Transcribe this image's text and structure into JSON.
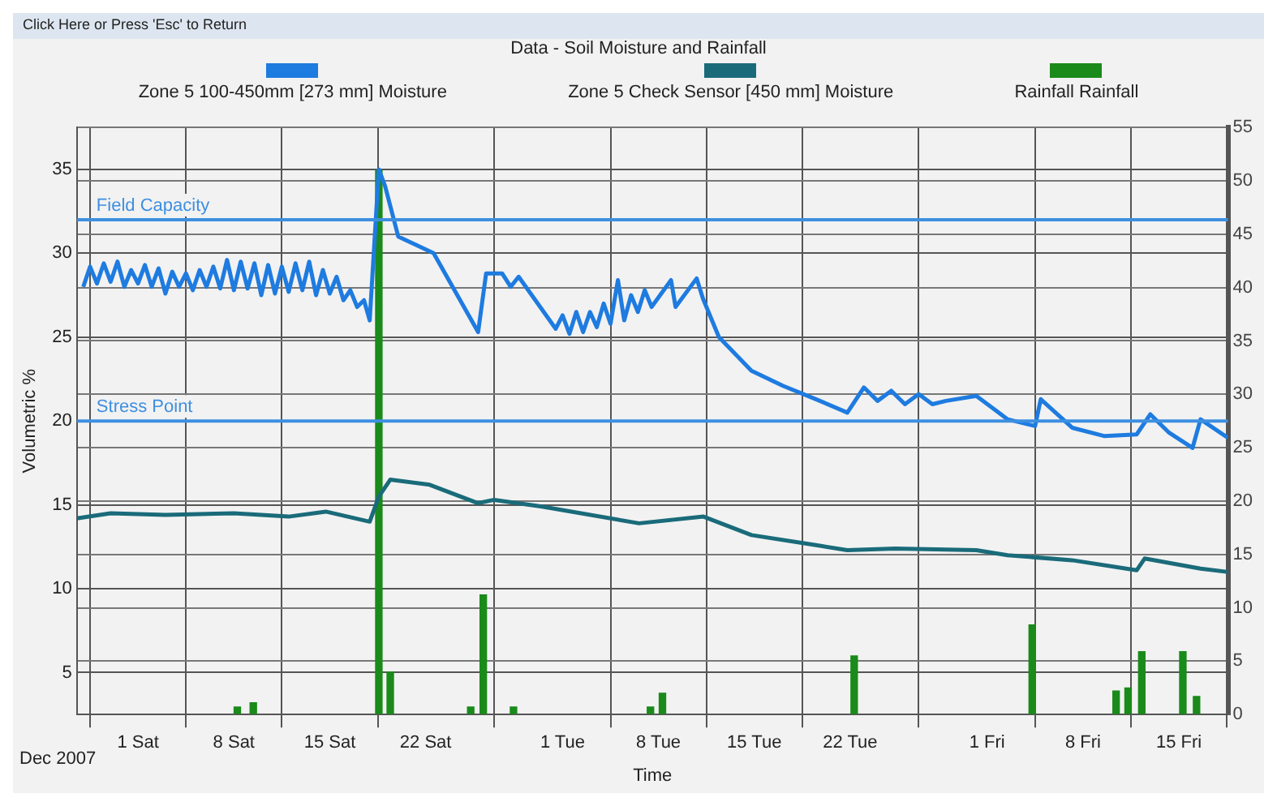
{
  "chart_data": {
    "type": "line",
    "title": "Data - Soil Moisture and Rainfall",
    "xlabel": "Time",
    "ylabel": "Volumetric %",
    "annotations": [
      "Click Here or Press 'Esc' to Return",
      "Dec 2007"
    ],
    "xlim": [
      "2007-11-26T13:00",
      "2008-02-18T14:00"
    ],
    "xticks": [
      {
        "value": "2007-12-01",
        "label": "1 Sat"
      },
      {
        "value": "2007-12-08",
        "label": "8 Sat"
      },
      {
        "value": "2007-12-15",
        "label": "15 Sat"
      },
      {
        "value": "2007-12-22",
        "label": "22 Sat"
      },
      {
        "value": "2008-01-01",
        "label": "1 Tue"
      },
      {
        "value": "2008-01-08",
        "label": "8 Tue"
      },
      {
        "value": "2008-01-15",
        "label": "15 Tue"
      },
      {
        "value": "2008-01-22",
        "label": "22 Tue"
      },
      {
        "value": "2008-02-01",
        "label": "1 Fri"
      },
      {
        "value": "2008-02-08",
        "label": "8 Fri"
      },
      {
        "value": "2008-02-15",
        "label": "15 Fri"
      }
    ],
    "ylim": [
      2.5,
      37.5
    ],
    "yticks": [
      5,
      10,
      15,
      20,
      25,
      30,
      35
    ],
    "y2lim": [
      0,
      55
    ],
    "y2ticks": [
      0,
      5,
      10,
      15,
      20,
      25,
      30,
      35,
      40,
      45,
      50,
      55
    ],
    "grid": true,
    "legend": "top",
    "ref_lines": [
      {
        "axis": "y",
        "value": 32,
        "label": "Field Capacity",
        "color": "#3d8fe0"
      },
      {
        "axis": "y",
        "value": 20,
        "label": "Stress Point",
        "color": "#3d8fe0"
      }
    ],
    "series": [
      {
        "name": "Zone 5  100-450mm  [273 mm] Moisture",
        "color": "#1e7be0",
        "x": [
          "2007-11-27T00:00",
          "2007-11-27T12:00",
          "2007-11-28T00:00",
          "2007-11-28T12:00",
          "2007-11-29T00:00",
          "2007-11-29T12:00",
          "2007-11-30T00:00",
          "2007-11-30T12:00",
          "2007-12-01T00:00",
          "2007-12-01T12:00",
          "2007-12-02T00:00",
          "2007-12-02T12:00",
          "2007-12-03T00:00",
          "2007-12-03T12:00",
          "2007-12-04T00:00",
          "2007-12-04T12:00",
          "2007-12-05T00:00",
          "2007-12-05T12:00",
          "2007-12-06T00:00",
          "2007-12-06T12:00",
          "2007-12-07T00:00",
          "2007-12-07T12:00",
          "2007-12-08T00:00",
          "2007-12-08T12:00",
          "2007-12-09T00:00",
          "2007-12-09T12:00",
          "2007-12-10T00:00",
          "2007-12-10T12:00",
          "2007-12-11T00:00",
          "2007-12-11T12:00",
          "2007-12-12T00:00",
          "2007-12-12T12:00",
          "2007-12-13T00:00",
          "2007-12-13T12:00",
          "2007-12-14T00:00",
          "2007-12-14T12:00",
          "2007-12-15T00:00",
          "2007-12-15T12:00",
          "2007-12-16T00:00",
          "2007-12-16T12:00",
          "2007-12-17T00:00",
          "2007-12-17T12:00",
          "2007-12-17T22:00",
          "2007-12-18T14:00",
          "2007-12-19T01:00",
          "2007-12-20T00:00",
          "2007-12-22T14:00",
          "2007-12-25T20:00",
          "2007-12-26T10:00",
          "2007-12-27T14:00",
          "2007-12-28T05:00",
          "2007-12-28T19:00",
          "2007-12-31T12:00",
          "2008-01-01T00:00",
          "2008-01-01T12:00",
          "2008-01-02T00:00",
          "2008-01-02T12:00",
          "2008-01-03T00:00",
          "2008-01-03T12:00",
          "2008-01-04T00:00",
          "2008-01-04T12:00",
          "2008-01-05T01:00",
          "2008-01-05T12:00",
          "2008-01-06T00:00",
          "2008-01-06T12:00",
          "2008-01-07T00:00",
          "2008-01-07T12:00",
          "2008-01-08T22:00",
          "2008-01-09T06:00",
          "2008-01-10T19:00",
          "2008-01-11T06:00",
          "2008-01-12T10:00",
          "2008-01-14T19:00",
          "2008-01-17T02:00",
          "2008-01-19T12:00",
          "2008-01-21T19:00",
          "2008-01-23T00:00",
          "2008-01-24T00:00",
          "2008-01-25T00:00",
          "2008-01-26T00:00",
          "2008-01-27T00:00",
          "2008-01-28T00:00",
          "2008-01-29T00:00",
          "2008-01-31T05:00",
          "2008-02-02T12:00",
          "2008-02-04T12:00",
          "2008-02-04T22:00",
          "2008-02-07T05:00",
          "2008-02-09T14:00",
          "2008-02-11T22:00",
          "2008-02-12T22:00",
          "2008-02-14T07:00",
          "2008-02-16T00:00",
          "2008-02-16T14:00",
          "2008-02-18T14:00"
        ],
        "values": [
          28.0,
          29.2,
          28.2,
          29.4,
          28.3,
          29.5,
          28.0,
          29.0,
          28.2,
          29.3,
          28.0,
          29.1,
          27.6,
          28.9,
          28.0,
          28.8,
          27.8,
          29.0,
          28.0,
          29.2,
          27.9,
          29.6,
          27.8,
          29.5,
          27.9,
          29.4,
          27.5,
          29.3,
          27.6,
          29.2,
          27.7,
          29.4,
          27.8,
          29.5,
          27.5,
          29.0,
          27.6,
          28.6,
          27.2,
          27.8,
          26.8,
          27.2,
          26.0,
          35.0,
          34.0,
          31.0,
          30.0,
          25.3,
          28.8,
          28.8,
          28.0,
          28.6,
          25.5,
          26.3,
          25.2,
          26.5,
          25.3,
          26.5,
          25.6,
          27.0,
          25.8,
          28.4,
          26.0,
          27.5,
          26.5,
          27.8,
          26.8,
          28.4,
          26.8,
          28.5,
          27.3,
          25.0,
          23.0,
          22.1,
          21.3,
          20.5,
          22.0,
          21.2,
          21.8,
          21.0,
          21.6,
          21.0,
          21.2,
          21.5,
          20.1,
          19.7,
          21.3,
          19.6,
          19.1,
          19.2,
          20.4,
          19.3,
          18.4,
          20.1,
          19.0
        ]
      },
      {
        "name": "Zone 5 Check Sensor  [450 mm] Moisture",
        "color": "#1a6b7a",
        "x": [
          "2007-11-26T13:00",
          "2007-11-29T00:00",
          "2007-12-03T00:00",
          "2007-12-08T00:00",
          "2007-12-12T00:00",
          "2007-12-14T17:00",
          "2007-12-17T22:00",
          "2007-12-18T14:00",
          "2007-12-19T10:00",
          "2007-12-22T07:00",
          "2007-12-25T20:00",
          "2007-12-27T00:00",
          "2007-12-30T12:00",
          "2008-01-06T14:00",
          "2008-01-11T07:00",
          "2008-01-14T19:00",
          "2008-01-19T12:00",
          "2008-01-21T19:00",
          "2008-01-25T07:00",
          "2008-01-31T05:00",
          "2008-02-02T12:00",
          "2008-02-07T05:00",
          "2008-02-11T22:00",
          "2008-02-12T12:00",
          "2008-02-16T14:00",
          "2008-02-18T14:00"
        ],
        "values": [
          14.2,
          14.5,
          14.4,
          14.5,
          14.3,
          14.6,
          14.0,
          15.5,
          16.5,
          16.2,
          15.1,
          15.3,
          14.9,
          13.9,
          14.3,
          13.2,
          12.6,
          12.3,
          12.4,
          12.3,
          12.0,
          11.7,
          11.1,
          11.8,
          11.2,
          11.0
        ]
      },
      {
        "name": "Rainfall Rainfall",
        "type": "bar",
        "axis": "y2",
        "color": "#1a8a1a",
        "x": [
          "2007-12-08T06:00",
          "2007-12-09T10:00",
          "2007-12-18T14:00",
          "2007-12-19T10:00",
          "2007-12-25T07:00",
          "2007-12-26T05:00",
          "2007-12-28T10:00",
          "2008-01-07T10:00",
          "2008-01-08T07:00",
          "2008-01-22T07:00",
          "2008-02-04T07:00",
          "2008-02-10T10:00",
          "2008-02-11T07:00",
          "2008-02-12T07:00",
          "2008-02-15T07:00",
          "2008-02-16T07:00"
        ],
        "values": [
          0.7,
          1.1,
          51,
          4.0,
          0.7,
          11.2,
          0.7,
          0.7,
          2.0,
          5.5,
          8.4,
          2.2,
          2.5,
          5.9,
          5.9,
          1.7
        ]
      }
    ]
  }
}
